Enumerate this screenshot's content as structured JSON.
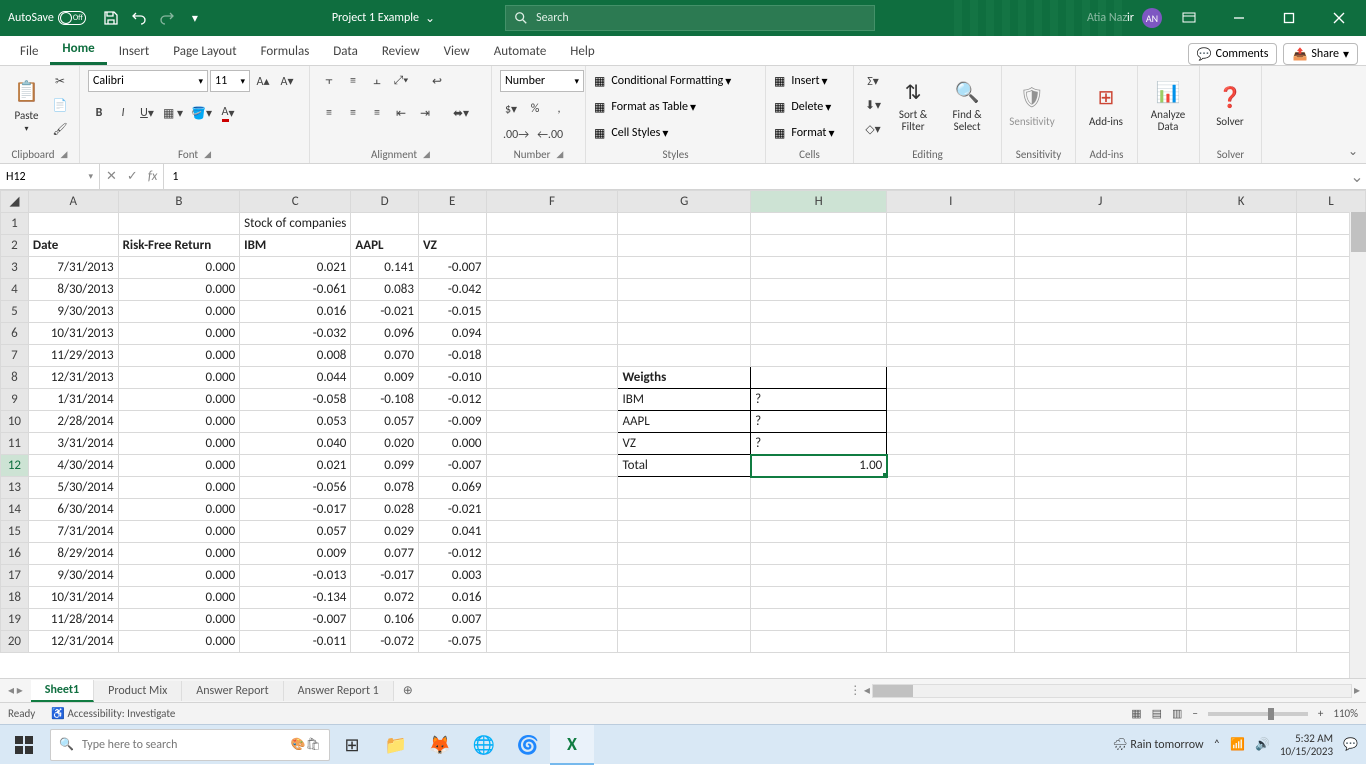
{
  "titlebar": {
    "autosave": "AutoSave",
    "autosave_state": "Off",
    "filename": "Project 1 Example",
    "search_placeholder": "Search",
    "username": "Atia Nazir",
    "user_initials": "AN"
  },
  "tabs": {
    "file": "File",
    "home": "Home",
    "insert": "Insert",
    "pagelayout": "Page Layout",
    "formulas": "Formulas",
    "data": "Data",
    "review": "Review",
    "view": "View",
    "automate": "Automate",
    "help": "Help",
    "comments": "Comments",
    "share": "Share"
  },
  "ribbon": {
    "clipboard": {
      "paste": "Paste",
      "label": "Clipboard"
    },
    "font": {
      "name": "Calibri",
      "size": "11",
      "label": "Font"
    },
    "alignment": {
      "label": "Alignment"
    },
    "number": {
      "format": "Number",
      "label": "Number"
    },
    "styles": {
      "cond": "Conditional Formatting",
      "table": "Format as Table",
      "cell": "Cell Styles",
      "label": "Styles"
    },
    "cells": {
      "insert": "Insert",
      "delete": "Delete",
      "format": "Format",
      "label": "Cells"
    },
    "editing": {
      "sort": "Sort & Filter",
      "find": "Find & Select",
      "label": "Editing"
    },
    "sensitivity": {
      "btn": "Sensitivity",
      "label": "Sensitivity"
    },
    "addins": {
      "btn": "Add-ins",
      "label": "Add-ins"
    },
    "analyze": {
      "btn": "Analyze Data"
    },
    "solver": {
      "btn": "Solver",
      "label": "Solver"
    }
  },
  "formulabar": {
    "name": "H12",
    "value": "1"
  },
  "columns": [
    "A",
    "B",
    "C",
    "D",
    "E",
    "F",
    "G",
    "H",
    "I",
    "J",
    "K",
    "L"
  ],
  "sheet": {
    "c1": "Stock of companies",
    "headers": {
      "a": "Date",
      "b": "Risk-Free Return",
      "c": "IBM",
      "d": "AAPL",
      "e": "VZ"
    },
    "rows": [
      {
        "a": "7/31/2013",
        "b": "0.000",
        "c": "0.021",
        "d": "0.141",
        "e": "-0.007"
      },
      {
        "a": "8/30/2013",
        "b": "0.000",
        "c": "-0.061",
        "d": "0.083",
        "e": "-0.042"
      },
      {
        "a": "9/30/2013",
        "b": "0.000",
        "c": "0.016",
        "d": "-0.021",
        "e": "-0.015"
      },
      {
        "a": "10/31/2013",
        "b": "0.000",
        "c": "-0.032",
        "d": "0.096",
        "e": "0.094"
      },
      {
        "a": "11/29/2013",
        "b": "0.000",
        "c": "0.008",
        "d": "0.070",
        "e": "-0.018"
      },
      {
        "a": "12/31/2013",
        "b": "0.000",
        "c": "0.044",
        "d": "0.009",
        "e": "-0.010"
      },
      {
        "a": "1/31/2014",
        "b": "0.000",
        "c": "-0.058",
        "d": "-0.108",
        "e": "-0.012"
      },
      {
        "a": "2/28/2014",
        "b": "0.000",
        "c": "0.053",
        "d": "0.057",
        "e": "-0.009"
      },
      {
        "a": "3/31/2014",
        "b": "0.000",
        "c": "0.040",
        "d": "0.020",
        "e": "0.000"
      },
      {
        "a": "4/30/2014",
        "b": "0.000",
        "c": "0.021",
        "d": "0.099",
        "e": "-0.007"
      },
      {
        "a": "5/30/2014",
        "b": "0.000",
        "c": "-0.056",
        "d": "0.078",
        "e": "0.069"
      },
      {
        "a": "6/30/2014",
        "b": "0.000",
        "c": "-0.017",
        "d": "0.028",
        "e": "-0.021"
      },
      {
        "a": "7/31/2014",
        "b": "0.000",
        "c": "0.057",
        "d": "0.029",
        "e": "0.041"
      },
      {
        "a": "8/29/2014",
        "b": "0.000",
        "c": "0.009",
        "d": "0.077",
        "e": "-0.012"
      },
      {
        "a": "9/30/2014",
        "b": "0.000",
        "c": "-0.013",
        "d": "-0.017",
        "e": "0.003"
      },
      {
        "a": "10/31/2014",
        "b": "0.000",
        "c": "-0.134",
        "d": "0.072",
        "e": "0.016"
      },
      {
        "a": "11/28/2014",
        "b": "0.000",
        "c": "-0.007",
        "d": "0.106",
        "e": "0.007"
      },
      {
        "a": "12/31/2014",
        "b": "0.000",
        "c": "-0.011",
        "d": "-0.072",
        "e": "-0.075"
      }
    ],
    "weights": {
      "title": "Weigths",
      "r1": "IBM",
      "r2": "AAPL",
      "r3": "VZ",
      "r4": "Total",
      "v1": "?",
      "v2": "?",
      "v3": "?",
      "v4": "1.00"
    }
  },
  "sheets": {
    "s1": "Sheet1",
    "s2": "Product Mix",
    "s3": "Answer Report",
    "s4": "Answer Report 1"
  },
  "status": {
    "ready": "Ready",
    "access": "Accessibility: Investigate",
    "zoom": "110%"
  },
  "taskbar": {
    "search": "Type here to search",
    "weather": "Rain tomorrow",
    "time": "5:32 AM",
    "date": "10/15/2023"
  }
}
